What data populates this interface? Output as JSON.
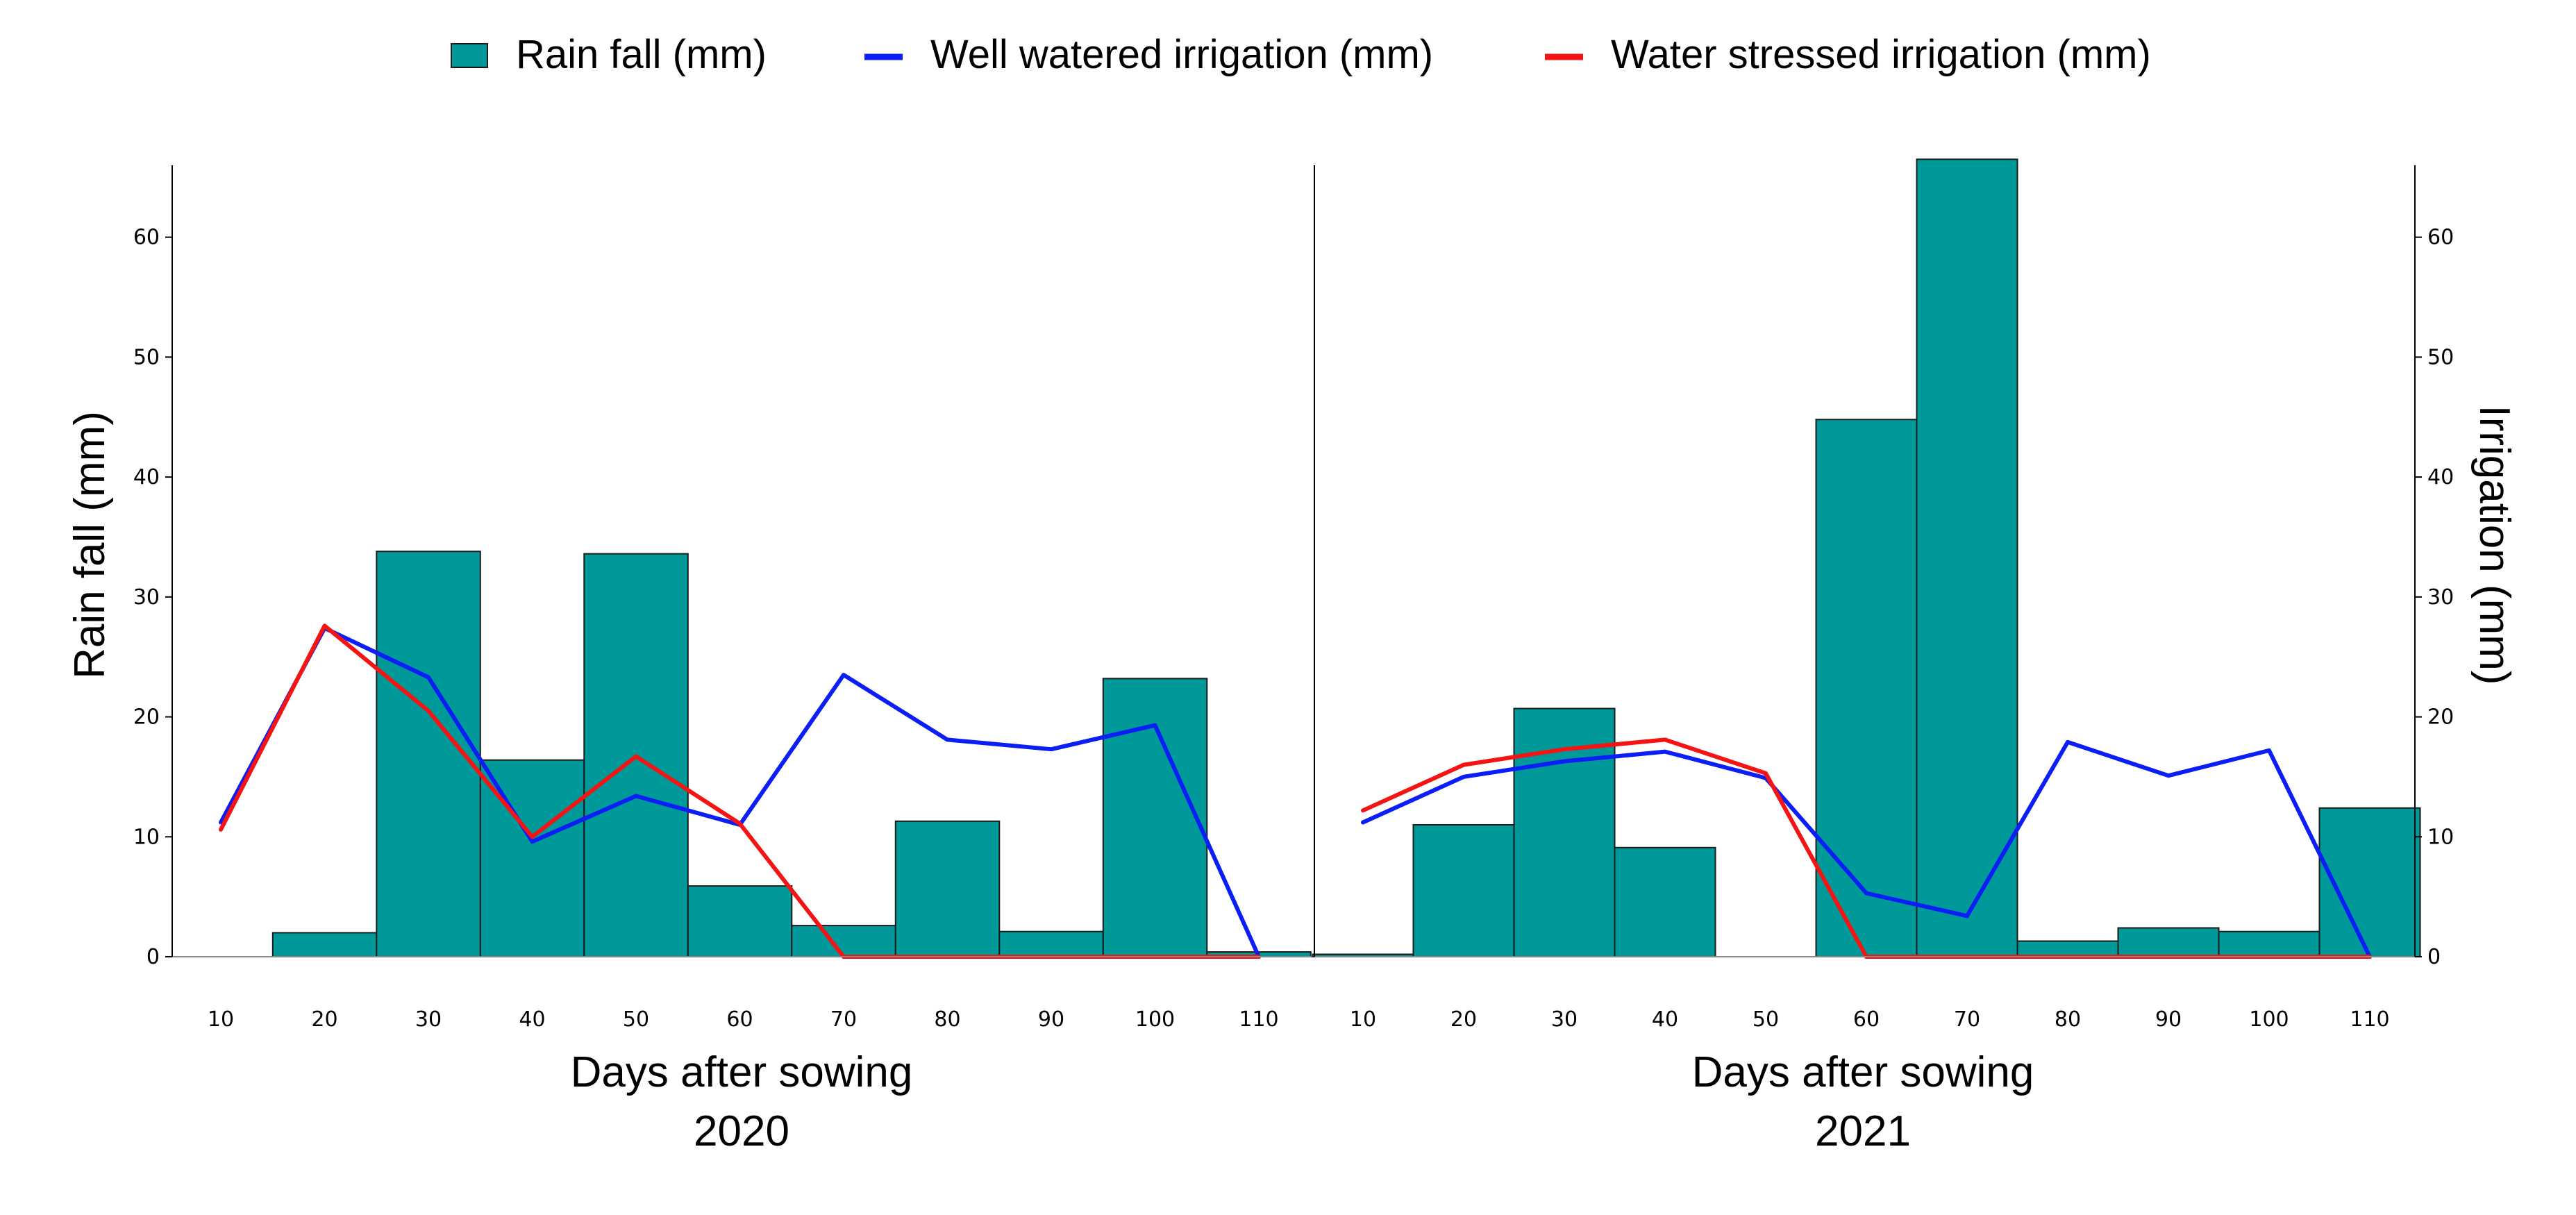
{
  "legend": {
    "rain": "Rain fall (mm)",
    "well": "Well watered irrigation (mm)",
    "stress": "Water stressed irrigation (mm)"
  },
  "colors": {
    "bar_fill": "#009999",
    "bar_stroke": "#1a1a1a",
    "well": "#0a1ef5",
    "stress": "#f51414",
    "axis": "#000000"
  },
  "chart_data": [
    {
      "type": "bar+line",
      "year": "2020",
      "xlabel": "Days after sowing",
      "ylabel": "Rain fall (mm)",
      "ylim": [
        0,
        66
      ],
      "yticks": [
        0,
        10,
        20,
        30,
        40,
        50,
        60
      ],
      "xticks": [
        10,
        20,
        30,
        40,
        50,
        60,
        70,
        80,
        90,
        100,
        110
      ],
      "bars": [
        {
          "x": 20,
          "value": 2.0
        },
        {
          "x": 30,
          "value": 33.8
        },
        {
          "x": 40,
          "value": 16.4
        },
        {
          "x": 50,
          "value": 33.6
        },
        {
          "x": 60,
          "value": 5.9
        },
        {
          "x": 70,
          "value": 2.6
        },
        {
          "x": 80,
          "value": 11.3
        },
        {
          "x": 90,
          "value": 2.1
        },
        {
          "x": 100,
          "value": 23.2
        },
        {
          "x": 110,
          "value": 0.4
        }
      ],
      "series": [
        {
          "name": "Well watered irrigation (mm)",
          "key": "well",
          "x": [
            10,
            20,
            30,
            40,
            50,
            60,
            70,
            80,
            90,
            100,
            110
          ],
          "values": [
            11.2,
            27.4,
            23.3,
            9.6,
            13.4,
            11.0,
            23.5,
            18.1,
            17.3,
            19.3,
            0
          ]
        },
        {
          "name": "Water stressed irrigation (mm)",
          "key": "stress",
          "x": [
            10,
            20,
            30,
            40,
            50,
            60,
            70,
            80,
            90,
            100,
            110
          ],
          "values": [
            10.6,
            27.6,
            20.5,
            10.0,
            16.7,
            11.1,
            0,
            0,
            0,
            0,
            0
          ]
        }
      ]
    },
    {
      "type": "bar+line",
      "year": "2021",
      "xlabel": "Days after sowing",
      "ylabel": "Irrigation (mm)",
      "ylim": [
        0,
        66
      ],
      "yticks": [
        0,
        10,
        20,
        30,
        40,
        50,
        60
      ],
      "xticks": [
        10,
        20,
        30,
        40,
        50,
        60,
        70,
        80,
        90,
        100,
        110
      ],
      "bars": [
        {
          "x": 10,
          "value": 0.2
        },
        {
          "x": 20,
          "value": 11.0
        },
        {
          "x": 30,
          "value": 20.7
        },
        {
          "x": 40,
          "value": 9.1
        },
        {
          "x": 50,
          "value": 0
        },
        {
          "x": 60,
          "value": 44.8
        },
        {
          "x": 70,
          "value": 66.5
        },
        {
          "x": 80,
          "value": 1.3
        },
        {
          "x": 90,
          "value": 2.4
        },
        {
          "x": 100,
          "value": 2.1
        },
        {
          "x": 110,
          "value": 12.4
        }
      ],
      "series": [
        {
          "name": "Well watered irrigation (mm)",
          "key": "well",
          "x": [
            10,
            20,
            30,
            40,
            50,
            60,
            70,
            80,
            90,
            100,
            110
          ],
          "values": [
            11.2,
            15.0,
            16.3,
            17.1,
            14.9,
            5.3,
            3.4,
            17.9,
            15.1,
            17.2,
            0
          ]
        },
        {
          "name": "Water stressed irrigation (mm)",
          "key": "stress",
          "x": [
            10,
            20,
            30,
            40,
            50,
            60,
            70,
            80,
            90,
            100,
            110
          ],
          "values": [
            12.2,
            16.0,
            17.3,
            18.1,
            15.3,
            0,
            0,
            0,
            0,
            0,
            0
          ]
        }
      ]
    }
  ]
}
